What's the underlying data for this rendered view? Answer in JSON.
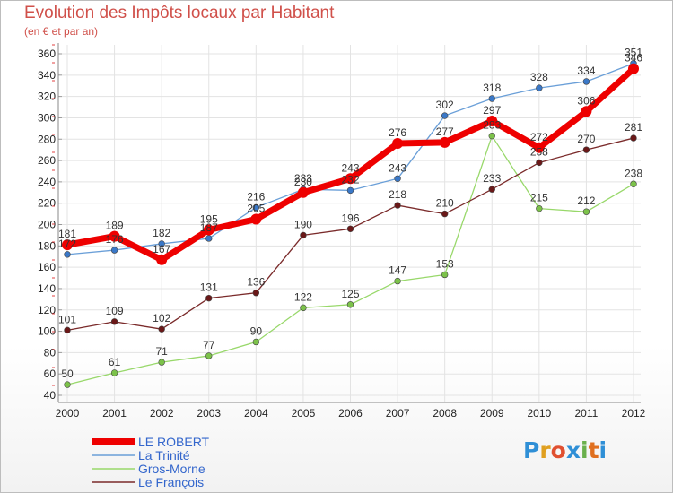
{
  "title": "Evolution des Impôts locaux par Habitant",
  "subtitle": "(en € et par an)",
  "logo": {
    "text": "Proxiti",
    "letters": [
      "P",
      "r",
      "o",
      "x",
      "i",
      "t",
      "i"
    ],
    "colors": [
      "#2f8fd6",
      "#e0a020",
      "#e05030",
      "#2f8fd6",
      "#6ab04c",
      "#e07020",
      "#2f8fd6"
    ]
  },
  "chart_data": {
    "type": "line",
    "title": "Evolution des Impôts locaux par Habitant",
    "ylabel": "(en € et par an)",
    "xlabel": "",
    "x": [
      "2000",
      "2001",
      "2002",
      "2003",
      "2004",
      "2005",
      "2006",
      "2007",
      "2008",
      "2009",
      "2010",
      "2011",
      "2012"
    ],
    "ylim": [
      40,
      360
    ],
    "yticks": [
      40,
      60,
      80,
      100,
      120,
      140,
      160,
      180,
      200,
      220,
      240,
      260,
      280,
      300,
      320,
      340,
      360
    ],
    "grid": true,
    "legend_position": "bottom-left",
    "series": [
      {
        "name": "La Trinité",
        "color": "#6a9fd8",
        "marker": "#3a78c8",
        "width": 1.3,
        "labels": [
          172,
          176,
          182,
          187,
          216,
          233,
          232,
          243,
          302,
          318,
          328,
          334,
          351
        ]
      },
      {
        "name": "Gros-Morne",
        "color": "#98d86a",
        "marker": "#7cc24a",
        "width": 1.3,
        "labels": [
          50,
          61,
          71,
          77,
          90,
          122,
          125,
          147,
          153,
          283,
          215,
          212,
          238
        ]
      },
      {
        "name": "Le François",
        "color": "#7a2a2a",
        "marker": "#6a1818",
        "width": 1.3,
        "labels": [
          101,
          109,
          102,
          131,
          136,
          190,
          196,
          218,
          210,
          233,
          258,
          270,
          281
        ]
      },
      {
        "name": "LE ROBERT",
        "color": "#ee0000",
        "marker": "#ee0000",
        "width": 7,
        "labels": [
          181,
          189,
          167,
          195,
          205,
          230,
          243,
          276,
          277,
          297,
          272,
          306,
          346
        ]
      }
    ],
    "legend": [
      "LE ROBERT",
      "La Trinité",
      "Gros-Morne",
      "Le François"
    ]
  }
}
